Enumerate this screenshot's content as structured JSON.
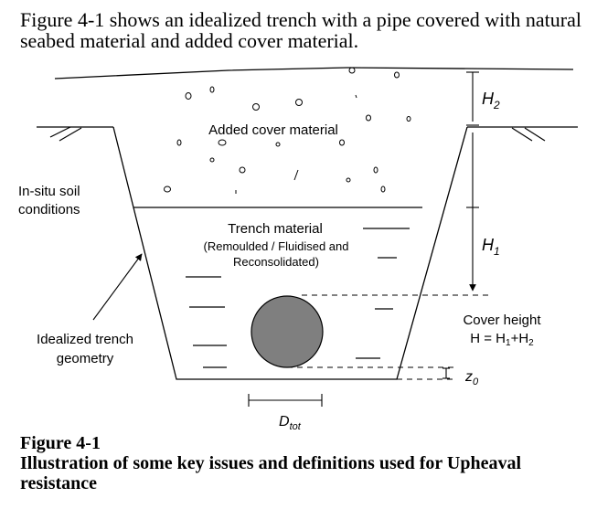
{
  "intro": "Figure 4-1 shows an idealized trench with a pipe covered with natural seabed material and added cover material.",
  "diagram": {
    "cover_label": "Added cover material",
    "insitu_label_1": "In-situ soil",
    "insitu_label_2": "conditions",
    "trench_label_1": "Trench material",
    "trench_label_2": "(Remoulded / Fluidised and",
    "trench_label_3": "Reconsolidated)",
    "geometry_label_1": "Idealized trench",
    "geometry_label_2": "geometry",
    "cover_height_label_1": "Cover height",
    "cover_height_label_2_prefix": "H = H",
    "cover_height_label_2_sub1": "1",
    "cover_height_label_2_mid": "+H",
    "cover_height_label_2_sub2": "2",
    "h2_main": "H",
    "h2_sub": "2",
    "h1_main": "H",
    "h1_sub": "1",
    "z0_main": "z",
    "z0_sub": "0",
    "d_main": "D",
    "d_sub": "tot",
    "colors": {
      "pipe_fill": "#7f7f7f",
      "line": "#000000"
    }
  },
  "caption": {
    "number": "Figure 4-1",
    "text": "Illustration of some key issues and definitions used for Upheaval resistance"
  }
}
